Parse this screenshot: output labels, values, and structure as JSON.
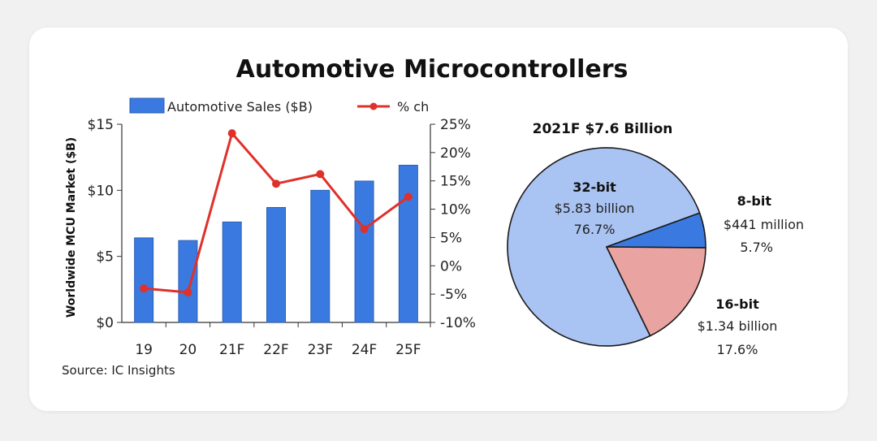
{
  "colors": {
    "bar": "#3a7ae0",
    "bar_stroke": "#2b5fb5",
    "line": "#e0302a",
    "pie_32bit": "#a9c3f2",
    "pie_8bit": "#3a7ae0",
    "pie_16bit": "#e9a3a1"
  },
  "chart_data": [
    {
      "type": "bar",
      "title": "Automotive Microcontrollers",
      "categories": [
        "19",
        "20",
        "21F",
        "22F",
        "23F",
        "24F",
        "25F"
      ],
      "series": [
        {
          "name": "Automotive Sales ($B)",
          "axis": "left",
          "values": [
            6.4,
            6.2,
            7.6,
            8.7,
            10.0,
            10.7,
            11.9
          ]
        },
        {
          "name": "% ch",
          "axis": "right",
          "type": "line",
          "values": [
            -4.0,
            -4.7,
            23.4,
            14.5,
            16.2,
            6.5,
            12.2
          ]
        }
      ],
      "ylabel": "Worldwide MCU Market ($B)",
      "ylim": [
        0,
        15
      ],
      "y_ticks": [
        "$0",
        "$5",
        "$10",
        "$15"
      ],
      "y2lim": [
        -10,
        25
      ],
      "y2_ticks": [
        "-10%",
        "-5%",
        "0%",
        "5%",
        "10%",
        "15%",
        "20%",
        "25%"
      ],
      "legend": "top",
      "source": "Source: IC Insights"
    },
    {
      "type": "pie",
      "title": "2021F $7.6 Billion",
      "slices": [
        {
          "label": "32-bit",
          "amount": "$5.83 billion",
          "percent_text": "76.7%",
          "value": 76.7
        },
        {
          "label": "8-bit",
          "amount": "$441 million",
          "percent_text": "5.7%",
          "value": 5.7
        },
        {
          "label": "16-bit",
          "amount": "$1.34 billion",
          "percent_text": "17.6%",
          "value": 17.6
        }
      ]
    }
  ]
}
